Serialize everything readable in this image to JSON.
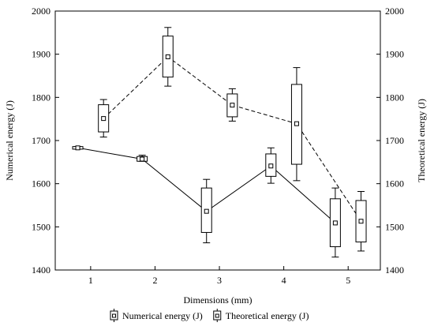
{
  "chart_data": {
    "type": "box",
    "xlabel": "Dimensions (mm)",
    "ylabel": "Numerical energy (J)",
    "ylabel_right": "Theoretical energy (J)",
    "xticks": [
      1,
      2,
      3,
      4,
      5
    ],
    "xlim": [
      0.45,
      5.5
    ],
    "yticks": [
      1400,
      1500,
      1600,
      1700,
      1800,
      1900,
      2000
    ],
    "ylim": [
      1400,
      2000
    ],
    "grid": false,
    "legend_position": "bottom",
    "series": [
      {
        "name": "Numerical energy (J)",
        "line_style": "solid",
        "color": "#000000",
        "points": [
          {
            "x": 0.8,
            "mean": 1683,
            "box": [
              1680,
              1686
            ],
            "whisker": [
              1680,
              1686
            ]
          },
          {
            "x": 1.8,
            "mean": 1657,
            "box": [
              1652,
              1663
            ],
            "whisker": [
              1652,
              1666
            ]
          },
          {
            "x": 2.8,
            "mean": 1536,
            "box": [
              1487,
              1590
            ],
            "whisker": [
              1463,
              1610
            ]
          },
          {
            "x": 3.8,
            "mean": 1641,
            "box": [
              1617,
              1669
            ],
            "whisker": [
              1601,
              1683
            ]
          },
          {
            "x": 4.8,
            "mean": 1509,
            "box": [
              1454,
              1565
            ],
            "whisker": [
              1430,
              1590
            ]
          }
        ]
      },
      {
        "name": "Theoretical energy (J)",
        "line_style": "dashed",
        "color": "#000000",
        "points": [
          {
            "x": 1.2,
            "mean": 1751,
            "box": [
              1720,
              1783
            ],
            "whisker": [
              1708,
              1795
            ]
          },
          {
            "x": 2.2,
            "mean": 1894,
            "box": [
              1847,
              1942
            ],
            "whisker": [
              1826,
              1962
            ]
          },
          {
            "x": 3.2,
            "mean": 1782,
            "box": [
              1755,
              1808
            ],
            "whisker": [
              1745,
              1820
            ]
          },
          {
            "x": 4.2,
            "mean": 1739,
            "box": [
              1645,
              1830
            ],
            "whisker": [
              1607,
              1869
            ]
          },
          {
            "x": 5.2,
            "mean": 1513,
            "box": [
              1465,
              1561
            ],
            "whisker": [
              1444,
              1582
            ]
          }
        ]
      }
    ]
  }
}
